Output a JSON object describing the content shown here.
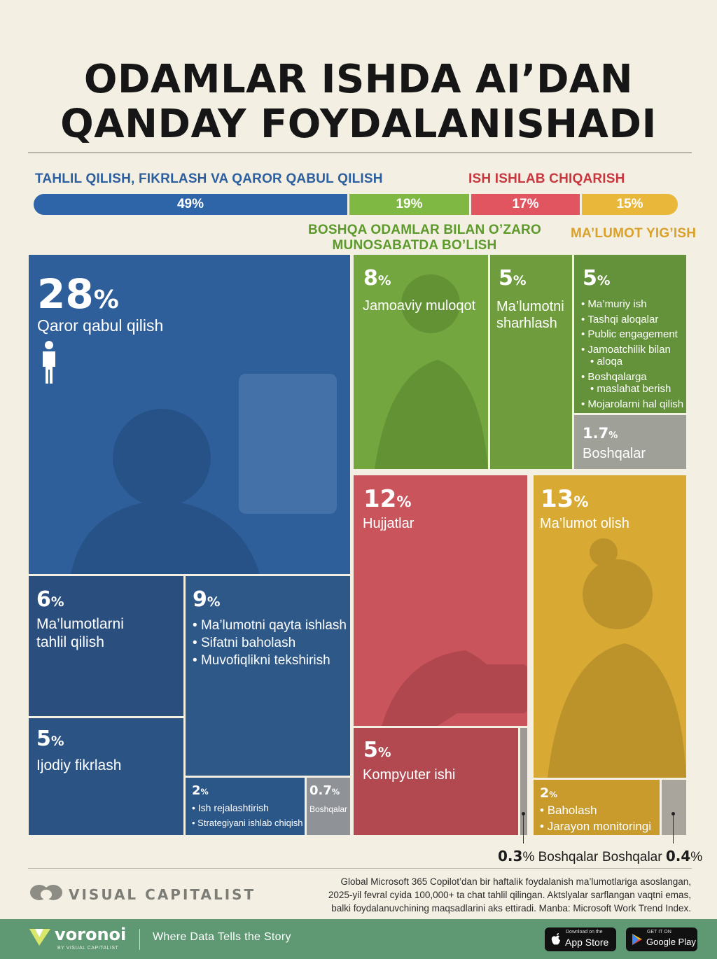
{
  "title": {
    "line1": "ODAMLAR ISHDA AI’DAN",
    "line2": "QANDAY FOYDALANISHADI"
  },
  "categories": {
    "analysis": {
      "label": "TAHLIL QILISH, FIKRLASH VA QAROR QABUL QILISH",
      "pct": "49%",
      "value": 49,
      "color": "#2e64a8"
    },
    "interaction": {
      "label_line1": "BOSHQA ODAMLAR BILAN O’ZARO",
      "label_line2": "MUNOSABATDA BO’LISH",
      "pct": "19%",
      "value": 19,
      "color": "#7fb843"
    },
    "production": {
      "label": "ISH ISHLAB CHIQARISH",
      "pct": "17%",
      "value": 17,
      "color": "#e0555f"
    },
    "info": {
      "label": "MA’LUMOT YIG’ISH",
      "pct": "15%",
      "value": 15,
      "color": "#e9b73a"
    }
  },
  "chart_data": {
    "type": "treemap",
    "title": "ODAMLAR ISHDA AI’DAN QANDAY FOYDALANISHADI",
    "groups": [
      {
        "name": "TAHLIL QILISH, FIKRLASH VA QAROR QABUL QILISH",
        "value": 49,
        "items": [
          {
            "name": "Qaror qabul qilish",
            "value": 28
          },
          {
            "name": "Ma’lumotlarni tahlil qilish",
            "value": 6
          },
          {
            "name": "Ma’lumotni qayta ishlash / Sifatni baholash / Muvofiqlikni tekshirish",
            "value": 9
          },
          {
            "name": "Ijodiy fikrlash",
            "value": 5
          },
          {
            "name": "Ish rejalashtirish / Strategiyani ishlab chiqish",
            "value": 2
          },
          {
            "name": "Boshqalar",
            "value": 0.7
          }
        ]
      },
      {
        "name": "BOSHQA ODAMLAR BILAN O’ZARO MUNOSABATDA BO’LISH",
        "value": 19,
        "items": [
          {
            "name": "Jamoaviy muloqot",
            "value": 8
          },
          {
            "name": "Ma’lumotni sharhlash",
            "value": 5
          },
          {
            "name": "Ma’muriy ish / Tashqi aloqalar / Public engagement / Jamoatchilik bilan aloqa / Boshqalarga maslahat berish / Mojarolarni hal qilish",
            "value": 5
          },
          {
            "name": "Boshqalar",
            "value": 1.7
          }
        ]
      },
      {
        "name": "ISH ISHLAB CHIQARISH",
        "value": 17,
        "items": [
          {
            "name": "Hujjatlar",
            "value": 12
          },
          {
            "name": "Kompyuter ishi",
            "value": 5
          },
          {
            "name": "Boshqalar",
            "value": 0.3
          }
        ]
      },
      {
        "name": "MA’LUMOT YIG’ISH",
        "value": 15,
        "items": [
          {
            "name": "Ma’lumot olish",
            "value": 13
          },
          {
            "name": "Baholash / Jarayon monitoringi",
            "value": 2
          },
          {
            "name": "Boshqalar",
            "value": 0.4
          }
        ]
      }
    ]
  },
  "tiles": {
    "decision": {
      "num": "28",
      "sym": "%",
      "label": "Qaror qabul qilish"
    },
    "data_analysis": {
      "num": "6",
      "sym": "%",
      "label1": "Ma’lumotlarni",
      "label2": "tahlil qilish"
    },
    "processing": {
      "num": "9",
      "sym": "%",
      "items": [
        "Ma’lumotni qayta ishlash",
        "Sifatni baholash",
        "Muvofiqlikni tekshirish"
      ]
    },
    "creative": {
      "num": "5",
      "sym": "%",
      "label": "Ijodiy fikrlash"
    },
    "planning": {
      "num": "2",
      "sym": "%",
      "items": [
        "Ish rejalashtirish",
        "Strategiyani ishlab chiqish"
      ]
    },
    "analysis_other": {
      "num": "0.7",
      "sym": "%",
      "label": "Boshqalar"
    },
    "team": {
      "num": "8",
      "sym": "%",
      "label": "Jamoaviy muloqot"
    },
    "interpret": {
      "num": "5",
      "sym": "%",
      "label1": "Ma’lumotni",
      "label2": "sharhlash"
    },
    "admin": {
      "num": "5",
      "sym": "%",
      "items": [
        "Ma’muriy ish",
        "Tashqi aloqalar",
        "Public engagement",
        "Jamoatchilik bilan",
        "aloqa",
        "Boshqalarga",
        "maslahat berish",
        "Mojarolarni hal qilish"
      ]
    },
    "interaction_other": {
      "num": "1.7",
      "sym": "%",
      "label": "Boshqalar"
    },
    "docs": {
      "num": "12",
      "sym": "%",
      "label": "Hujjatlar"
    },
    "computer": {
      "num": "5",
      "sym": "%",
      "label": "Kompyuter ishi"
    },
    "info_get": {
      "num": "13",
      "sym": "%",
      "label": "Ma’lumot olish"
    },
    "evaluation": {
      "num": "2",
      "sym": "%",
      "items": [
        "Baholash",
        "Jarayon monitoringi"
      ]
    },
    "production_other": {
      "num": "0.3",
      "sym": "%",
      "label": "Boshqalar"
    },
    "info_other": {
      "num": "0.4",
      "sym": "%",
      "label": "Boshqalar"
    }
  },
  "source": {
    "line1": "Global Microsoft 365 Copilot’dan bir haftalik foydalanish ma’lumotlariga asoslangan,",
    "line2": "2025-yil fevral cyida 100,000+ ta chat tahlil qilingan. Aktslyalar sarflangan vaqtni emas,",
    "line3": "balki foydalanuvchining maqsadlarini aks ettiradi. Manba: Microsoft Work Trend Index."
  },
  "brand": "VISUAL CAPITALIST",
  "footer": {
    "logo": "voronoi",
    "logo_sub": "BY VISUAL CAPITALIST",
    "tagline": "Where Data Tells the Story",
    "appstore_small": "Download on the",
    "appstore_big": "App Store",
    "play_small": "GET IT ON",
    "play_big": "Google Play"
  }
}
